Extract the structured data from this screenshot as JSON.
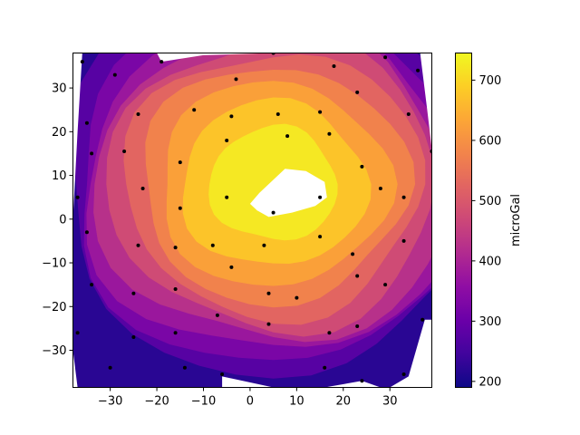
{
  "chart_data": {
    "type": "filled-contour",
    "title": "",
    "xlabel": "",
    "ylabel": "",
    "xlim": [
      -38,
      39
    ],
    "ylim": [
      -38.5,
      38
    ],
    "xticks": [
      -30,
      -20,
      -10,
      0,
      10,
      20,
      30
    ],
    "yticks": [
      -30,
      -20,
      -10,
      0,
      10,
      20,
      30
    ],
    "colormap": "plasma",
    "colorbar": {
      "label": "microGal",
      "range": [
        190,
        745
      ],
      "ticks": [
        200,
        300,
        400,
        500,
        600,
        700
      ]
    },
    "levels": [
      190,
      250,
      300,
      350,
      400,
      450,
      500,
      550,
      600,
      650,
      700,
      745
    ],
    "field_model": {
      "center": [
        5,
        8
      ],
      "peak_microgal": 745,
      "falloff_per_unit2": 0.238,
      "floor_microgal": 190
    },
    "stations": [
      [
        -36,
        36
      ],
      [
        -29,
        33
      ],
      [
        -19,
        36
      ],
      [
        -35,
        22
      ],
      [
        -24,
        24
      ],
      [
        -34,
        15
      ],
      [
        -27,
        15.5
      ],
      [
        -37,
        5
      ],
      [
        -23,
        7
      ],
      [
        -35,
        -3
      ],
      [
        -24,
        -6
      ],
      [
        -34,
        -15
      ],
      [
        -25,
        -17
      ],
      [
        -37,
        -26
      ],
      [
        -25,
        -27
      ],
      [
        -30,
        -34
      ],
      [
        -12,
        25
      ],
      [
        -15,
        13
      ],
      [
        -15,
        2.5
      ],
      [
        -16,
        -6.5
      ],
      [
        -16,
        -16
      ],
      [
        -16,
        -26
      ],
      [
        -14,
        -34
      ],
      [
        -6,
        -35.5
      ],
      [
        -3,
        32
      ],
      [
        -4,
        23.5
      ],
      [
        -5,
        18
      ],
      [
        -5,
        5
      ],
      [
        -8,
        -6
      ],
      [
        -4,
        -11
      ],
      [
        -7,
        -22
      ],
      [
        5,
        38
      ],
      [
        6,
        24
      ],
      [
        8,
        19
      ],
      [
        5,
        1.5
      ],
      [
        3,
        -6
      ],
      [
        4,
        -17
      ],
      [
        4,
        -24
      ],
      [
        10,
        -18
      ],
      [
        15,
        24.5
      ],
      [
        17,
        19.5
      ],
      [
        15,
        5
      ],
      [
        15,
        -4
      ],
      [
        17,
        -26
      ],
      [
        16,
        -34
      ],
      [
        18,
        35
      ],
      [
        23,
        29
      ],
      [
        24,
        12
      ],
      [
        22,
        -8
      ],
      [
        23,
        -13
      ],
      [
        23,
        -24.5
      ],
      [
        24,
        -37
      ],
      [
        28,
        7
      ],
      [
        29,
        -15
      ],
      [
        29,
        37
      ],
      [
        34,
        24
      ],
      [
        33,
        5
      ],
      [
        33,
        -5
      ],
      [
        33,
        -35.5
      ],
      [
        36,
        34
      ],
      [
        39,
        15.5
      ],
      [
        37,
        -23
      ]
    ]
  }
}
